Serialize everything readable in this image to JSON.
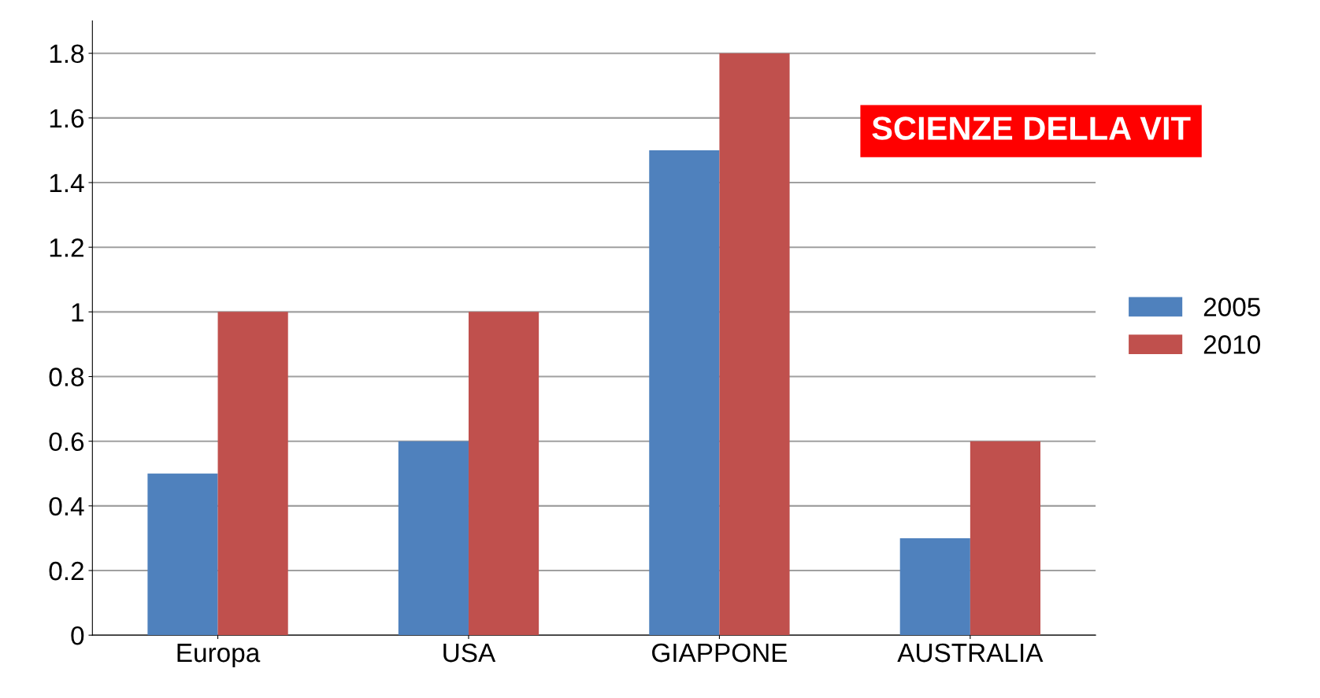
{
  "chart_data": {
    "type": "bar",
    "categories": [
      "Europa",
      "USA",
      "GIAPPONE",
      "AUSTRALIA"
    ],
    "series": [
      {
        "name": "2005",
        "color": "#4f81bd",
        "values": [
          0.5,
          0.6,
          1.5,
          0.3
        ]
      },
      {
        "name": "2010",
        "color": "#c0504d",
        "values": [
          1.0,
          1.0,
          1.8,
          0.6
        ]
      }
    ],
    "ylim": [
      0,
      1.9
    ],
    "yticks": [
      0,
      0.2,
      0.4,
      0.6,
      0.8,
      1,
      1.2,
      1.4,
      1.6,
      1.8
    ],
    "grid": "y",
    "legend": "right",
    "annotations": [
      "SCIENZE DELLA VIT"
    ]
  }
}
